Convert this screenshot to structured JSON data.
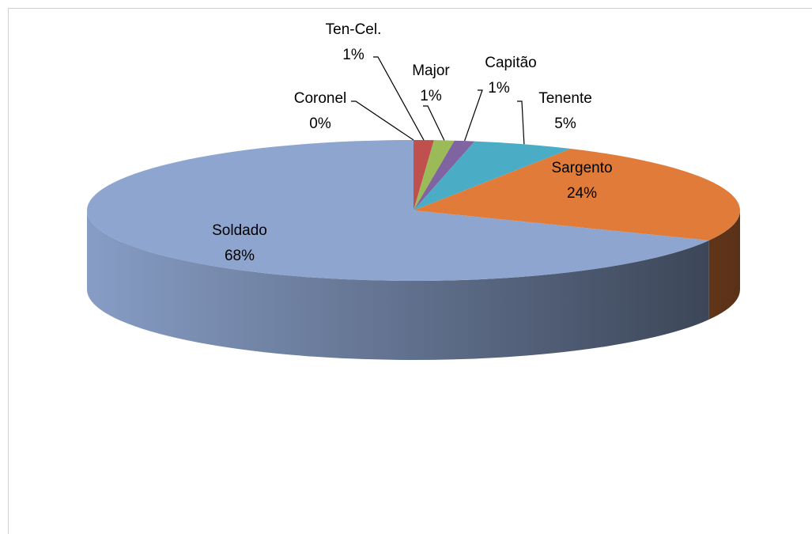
{
  "chart_data": {
    "type": "pie3d",
    "categories": [
      "Coronel",
      "Ten-Cel.",
      "Major",
      "Capitão",
      "Tenente",
      "Sargento",
      "Soldado"
    ],
    "values": [
      0,
      1,
      1,
      1,
      5,
      24,
      68
    ],
    "value_labels": [
      "0%",
      "1%",
      "1%",
      "1%",
      "5%",
      "24%",
      "68%"
    ],
    "colors": [
      "#4f81bd",
      "#c0504d",
      "#9bbb59",
      "#8064a2",
      "#4bacc6",
      "#e07b39",
      "#8ea5cf"
    ]
  }
}
